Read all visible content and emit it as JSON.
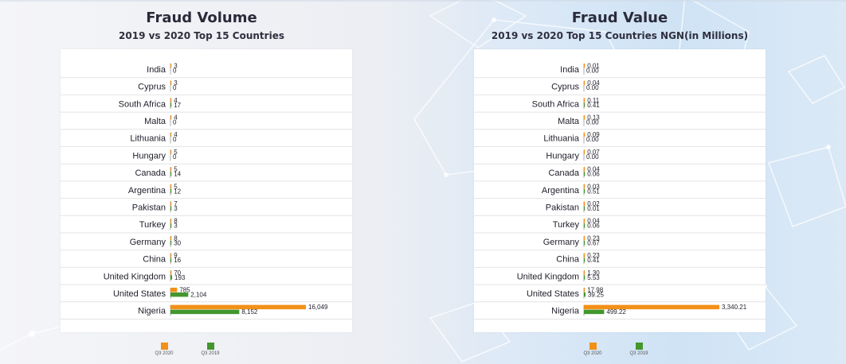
{
  "colors": {
    "q3_2020": "#f39018",
    "q3_2019": "#44962e"
  },
  "panels": [
    {
      "title": "Fraud Volume",
      "subtitle": "2019 vs 2020 Top 15 Countries",
      "legend": [
        "Q3 2020",
        "Q3 2019"
      ]
    },
    {
      "title": "Fraud Value",
      "subtitle": "2019 vs 2020 Top 15 Countries NGN(in Millions)",
      "legend": [
        "Q3 2020",
        "Q3 2019"
      ]
    }
  ],
  "chart_data": [
    {
      "type": "bar",
      "orientation": "horizontal",
      "title": "Fraud Volume",
      "subtitle": "2019 vs 2020 Top 15 Countries",
      "categories": [
        "India",
        "Cyprus",
        "South Africa",
        "Malta",
        "Lithuania",
        "Hungary",
        "Canada",
        "Argentina",
        "Pakistan",
        "Turkey",
        "Germany",
        "China",
        "United Kingdom",
        "United States",
        "Nigeria"
      ],
      "series": [
        {
          "name": "Q3 2020",
          "values": [
            3,
            3,
            4,
            4,
            4,
            5,
            5,
            5,
            7,
            8,
            8,
            9,
            70,
            785,
            16049
          ]
        },
        {
          "name": "Q3 2019",
          "values": [
            0,
            0,
            17,
            0,
            0,
            0,
            14,
            12,
            3,
            3,
            30,
            16,
            193,
            2104,
            8152
          ]
        }
      ],
      "value_labels": [
        [
          "3",
          "3",
          "4",
          "4",
          "4",
          "5",
          "5",
          "5",
          "7",
          "8",
          "8",
          "9",
          "70",
          "785",
          "16,049"
        ],
        [
          "0",
          "0",
          "17",
          "0",
          "0",
          "0",
          "14",
          "12",
          "3",
          "3",
          "30",
          "16",
          "193",
          "2,104",
          "8,152"
        ]
      ],
      "xlim": [
        0,
        16049
      ],
      "grid": false,
      "legend_position": "bottom"
    },
    {
      "type": "bar",
      "orientation": "horizontal",
      "title": "Fraud Value",
      "subtitle": "2019 vs 2020 Top 15 Countries NGN(in Millions)",
      "categories": [
        "India",
        "Cyprus",
        "South Africa",
        "Malta",
        "Lithuania",
        "Hungary",
        "Canada",
        "Argentina",
        "Pakistan",
        "Turkey",
        "Germany",
        "China",
        "United Kingdom",
        "United States",
        "Nigeria"
      ],
      "series": [
        {
          "name": "Q3 2020",
          "values": [
            0.01,
            0.04,
            0.11,
            0.13,
            0.09,
            0.07,
            0.04,
            0.03,
            0.02,
            0.04,
            0.23,
            0.23,
            1.3,
            17.98,
            3340.21
          ]
        },
        {
          "name": "Q3 2019",
          "values": [
            0.0,
            0.0,
            0.41,
            0.0,
            0.0,
            0.0,
            0.06,
            0.51,
            0.01,
            0.06,
            0.67,
            0.41,
            5.53,
            39.25,
            499.22
          ]
        }
      ],
      "value_labels": [
        [
          "0.01",
          "0.04",
          "0.11",
          "0.13",
          "0.09",
          "0.07",
          "0.04",
          "0.03",
          "0.02",
          "0.04",
          "0.23",
          "0.23",
          "1.30",
          "17.98",
          "3,340.21"
        ],
        [
          "0.00",
          "0.00",
          "0.41",
          "0.00",
          "0.00",
          "0.00",
          "0.06",
          "0.51",
          "0.01",
          "0.06",
          "0.67",
          "0.41",
          "5.53",
          "39.25",
          "499.22"
        ]
      ],
      "xlim": [
        0,
        3340.21
      ],
      "grid": false,
      "legend_position": "bottom"
    }
  ]
}
